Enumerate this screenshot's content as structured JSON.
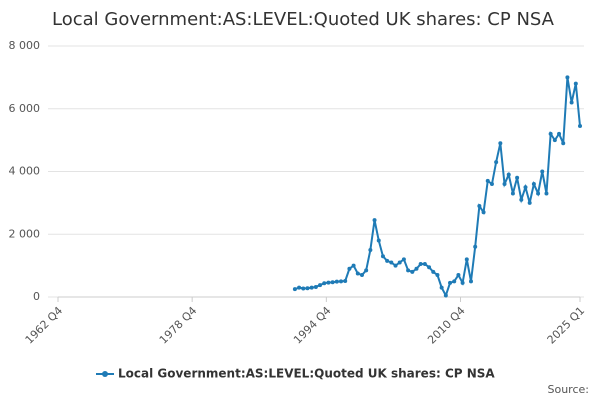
{
  "chart_data": {
    "type": "line",
    "title": "Local Government:AS:LEVEL:Quoted UK shares: CP NSA",
    "source": "Source:",
    "x": [
      "1991 Q1",
      "1991 Q3",
      "1992 Q1",
      "1992 Q3",
      "1993 Q1",
      "1993 Q3",
      "1994 Q1",
      "1994 Q3",
      "1995 Q1",
      "1995 Q3",
      "1996 Q1",
      "1996 Q3",
      "1997 Q1",
      "1997 Q3",
      "1998 Q1",
      "1998 Q3",
      "1999 Q1",
      "1999 Q3",
      "2000 Q1",
      "2000 Q3",
      "2001 Q1",
      "2001 Q3",
      "2002 Q1",
      "2002 Q3",
      "2003 Q1",
      "2003 Q3",
      "2004 Q1",
      "2004 Q3",
      "2005 Q1",
      "2005 Q3",
      "2006 Q1",
      "2006 Q3",
      "2007 Q1",
      "2007 Q3",
      "2008 Q1",
      "2008 Q3",
      "2009 Q1",
      "2009 Q3",
      "2010 Q1",
      "2010 Q3",
      "2011 Q1",
      "2011 Q3",
      "2012 Q1",
      "2012 Q3",
      "2013 Q1",
      "2013 Q3",
      "2014 Q1",
      "2014 Q3",
      "2015 Q1",
      "2015 Q3",
      "2016 Q1",
      "2016 Q3",
      "2017 Q1",
      "2017 Q3",
      "2018 Q1",
      "2018 Q3",
      "2019 Q1",
      "2019 Q3",
      "2020 Q1",
      "2020 Q3",
      "2021 Q1",
      "2021 Q3",
      "2022 Q1",
      "2022 Q3",
      "2023 Q1",
      "2023 Q3",
      "2024 Q1",
      "2024 Q3",
      "2025 Q1"
    ],
    "series": [
      {
        "name": "Local Government:AS:LEVEL:Quoted UK shares: CP NSA",
        "color": "#1f7bb6",
        "values": [
          250,
          300,
          270,
          280,
          300,
          320,
          380,
          440,
          460,
          470,
          490,
          500,
          510,
          900,
          1000,
          750,
          700,
          850,
          1500,
          2450,
          1800,
          1300,
          1150,
          1100,
          1000,
          1100,
          1200,
          850,
          800,
          900,
          1050,
          1050,
          950,
          800,
          700,
          300,
          50,
          450,
          500,
          700,
          450,
          1200,
          500,
          1600,
          2900,
          2700,
          3700,
          3600,
          4300,
          4900,
          3600,
          3900,
          3300,
          3800,
          3100,
          3500,
          3000,
          3600,
          3300,
          4000,
          3300,
          5200,
          5000,
          5200,
          4900,
          7000,
          6200,
          6800,
          5450
        ]
      }
    ],
    "xlim": [
      "1962 Q4",
      "2025 Q1"
    ],
    "xticks": [
      "1962 Q4",
      "1978 Q4",
      "1994 Q4",
      "2010 Q4",
      "2025 Q1"
    ],
    "ylim": [
      0,
      8000
    ],
    "yticks": [
      0,
      {
        "value": 2000,
        "label": "2 000"
      },
      {
        "value": 4000,
        "label": "4 000"
      },
      {
        "value": 6000,
        "label": "6 000"
      },
      {
        "value": 8000,
        "label": "8 000"
      }
    ],
    "grid": true
  }
}
